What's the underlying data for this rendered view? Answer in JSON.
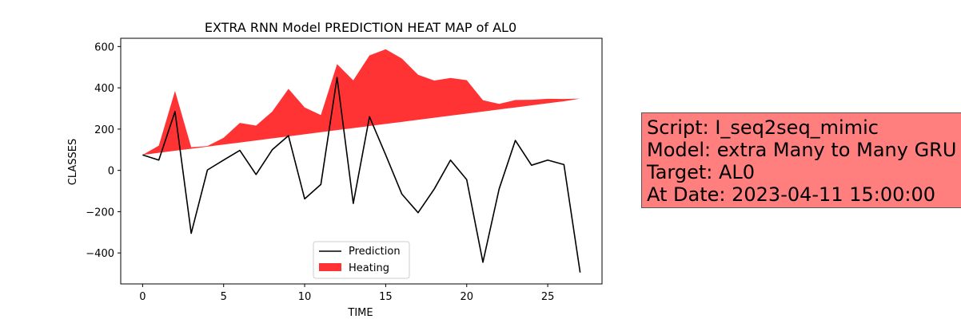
{
  "chart_data": {
    "type": "line",
    "title": "EXTRA RNN Model PREDICTION HEAT MAP of AL0",
    "xlabel": "TIME",
    "ylabel": "CLASSES",
    "xlim": [
      -1.35,
      28.35
    ],
    "ylim": [
      -550,
      640
    ],
    "xticks": [
      0,
      5,
      10,
      15,
      20,
      25
    ],
    "yticks": [
      600,
      400,
      200,
      0,
      -200,
      -400
    ],
    "ytick_labels": [
      "600",
      "400",
      "200",
      "0",
      "−200",
      "−400"
    ],
    "x": [
      0,
      1,
      2,
      3,
      4,
      5,
      6,
      7,
      8,
      9,
      10,
      11,
      12,
      13,
      14,
      15,
      16,
      17,
      18,
      19,
      20,
      21,
      22,
      23,
      24,
      25,
      26,
      27
    ],
    "series": [
      {
        "name": "Prediction",
        "kind": "line",
        "color": "#000000",
        "values": [
          75,
          50,
          285,
          -305,
          2,
          50,
          97,
          -20,
          100,
          168,
          -138,
          -68,
          450,
          -160,
          260,
          75,
          -115,
          -205,
          -90,
          50,
          -45,
          -445,
          -90,
          145,
          25,
          50,
          28,
          -495
        ]
      },
      {
        "name": "Heating",
        "kind": "area",
        "color": "#ff0000",
        "opacity": 0.8,
        "lower": [
          75,
          85,
          95,
          105,
          115,
          125,
          135,
          145,
          155,
          165,
          175,
          185,
          195,
          205,
          215,
          225,
          235,
          245,
          255,
          265,
          275,
          285,
          295,
          305,
          315,
          325,
          335,
          348
        ],
        "upper": [
          75,
          120,
          385,
          112,
          118,
          158,
          230,
          217,
          285,
          395,
          305,
          268,
          515,
          436,
          557,
          587,
          542,
          463,
          435,
          448,
          437,
          340,
          322,
          341,
          342,
          347,
          346,
          348
        ]
      }
    ],
    "legend": {
      "position": "lower-center",
      "entries": [
        "Prediction",
        "Heating"
      ]
    },
    "grid": false
  },
  "info_box": {
    "lines": [
      "Script: I_seq2seq_mimic",
      "Model: extra Many to Many GRU",
      "Target: AL0",
      "At Date: 2023-04-11 15:00:00"
    ],
    "background": "#ff7f7f"
  }
}
